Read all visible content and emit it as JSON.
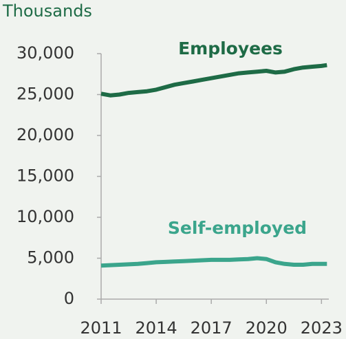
{
  "chart_data": {
    "type": "line",
    "y_label": "Thousands",
    "x": [
      2011,
      2011.5,
      2012,
      2012.5,
      2013,
      2013.5,
      2014,
      2014.5,
      2015,
      2015.5,
      2016,
      2016.5,
      2017,
      2017.5,
      2018,
      2018.5,
      2019,
      2019.5,
      2020,
      2020.5,
      2021,
      2021.5,
      2022,
      2022.5,
      2023,
      2023.3
    ],
    "series": [
      {
        "name": "Employees",
        "color": "#1e6b46",
        "values": [
          25100,
          24900,
          25000,
          25200,
          25300,
          25400,
          25600,
          25900,
          26200,
          26400,
          26600,
          26800,
          27000,
          27200,
          27400,
          27600,
          27700,
          27800,
          27900,
          27700,
          27800,
          28100,
          28300,
          28400,
          28500,
          28600
        ]
      },
      {
        "name": "Self-employed",
        "color": "#3ba58c",
        "values": [
          4100,
          4150,
          4200,
          4250,
          4300,
          4400,
          4500,
          4550,
          4600,
          4650,
          4700,
          4750,
          4800,
          4800,
          4800,
          4850,
          4900,
          5000,
          4900,
          4500,
          4300,
          4200,
          4200,
          4300,
          4300,
          4300
        ]
      }
    ],
    "xlim": [
      2011,
      2023.4
    ],
    "xticks": [
      2011,
      2014,
      2017,
      2020,
      2023
    ],
    "ylim": [
      0,
      30000
    ],
    "yticks": [
      0,
      {
        "value": 5000,
        "label": "5,000"
      },
      {
        "value": 10000,
        "label": "10,000"
      },
      {
        "value": 15000,
        "label": "15,000"
      },
      {
        "value": 20000,
        "label": "20,000"
      },
      {
        "value": 25000,
        "label": "25,000"
      },
      {
        "value": 30000,
        "label": "30,000"
      }
    ]
  }
}
